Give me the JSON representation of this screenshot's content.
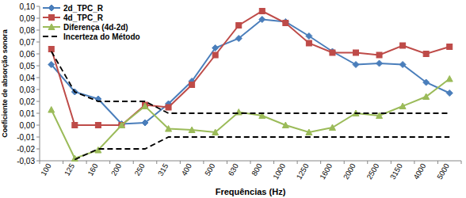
{
  "chart_data": {
    "type": "line",
    "x_label": "Frequências (Hz)",
    "y_label": "Coeficiente de absorção sonora",
    "categories": [
      "100",
      "125",
      "160",
      "200",
      "250",
      "315",
      "400",
      "500",
      "630",
      "800",
      "1000",
      "1250",
      "1600",
      "2000",
      "2500",
      "3150",
      "4000",
      "5000"
    ],
    "series": [
      {
        "name": "2d_TPC_R",
        "color": "#4a7ebb",
        "marker": "diamond",
        "line_style": "solid",
        "values": [
          0.051,
          0.028,
          0.022,
          0.001,
          0.002,
          0.018,
          0.037,
          0.065,
          0.073,
          0.089,
          0.087,
          0.075,
          0.062,
          0.051,
          0.052,
          0.051,
          0.036,
          0.027
        ]
      },
      {
        "name": "4d_TPC_R",
        "color": "#be4b48",
        "marker": "square",
        "line_style": "solid",
        "values": [
          0.064,
          0.0,
          0.0,
          0.0,
          0.017,
          0.015,
          0.034,
          0.059,
          0.084,
          0.096,
          0.086,
          0.069,
          0.061,
          0.061,
          0.059,
          0.067,
          0.06,
          0.066
        ]
      },
      {
        "name": "Diferença (4d-2d)",
        "color": "#9bbb59",
        "marker": "triangle",
        "line_style": "solid",
        "values": [
          0.013,
          -0.028,
          -0.021,
          0.0,
          0.016,
          -0.003,
          -0.004,
          -0.006,
          0.011,
          0.008,
          0.0,
          -0.006,
          -0.002,
          0.01,
          0.008,
          0.016,
          0.024,
          0.039
        ]
      },
      {
        "name": "Incerteza do Método",
        "color": "#000000",
        "marker": "none",
        "line_style": "dashed",
        "values": [
          0.062,
          0.028,
          0.02,
          0.02,
          0.02,
          0.01,
          0.01,
          0.01,
          0.01,
          0.01,
          0.01,
          0.01,
          0.01,
          0.01,
          0.01,
          0.01,
          0.01,
          0.01
        ]
      },
      {
        "color": "#000000",
        "marker": "none",
        "line_style": "dashed",
        "values": [
          null,
          -0.029,
          -0.02,
          -0.02,
          -0.02,
          -0.01,
          -0.01,
          -0.01,
          -0.01,
          -0.01,
          -0.01,
          -0.01,
          -0.01,
          -0.01,
          -0.01,
          -0.01,
          -0.01,
          -0.01
        ]
      }
    ],
    "ylim": [
      -0.03,
      0.1
    ],
    "yticks": [
      {
        "value": -0.03,
        "label": "-0,03"
      },
      {
        "value": -0.02,
        "label": "-0,02"
      },
      {
        "value": -0.01,
        "label": "-0,01"
      },
      {
        "value": 0.0,
        "label": "0,00"
      },
      {
        "value": 0.01,
        "label": "0,01"
      },
      {
        "value": 0.02,
        "label": "0,02"
      },
      {
        "value": 0.03,
        "label": "0,03"
      },
      {
        "value": 0.04,
        "label": "0,04"
      },
      {
        "value": 0.05,
        "label": "0,05"
      },
      {
        "value": 0.06,
        "label": "0,06"
      },
      {
        "value": 0.07,
        "label": "0,07"
      },
      {
        "value": 0.08,
        "label": "0,08"
      },
      {
        "value": 0.09,
        "label": "0,09"
      },
      {
        "value": 0.1,
        "label": "0,10"
      }
    ],
    "grid": false,
    "legend": "top-left"
  }
}
